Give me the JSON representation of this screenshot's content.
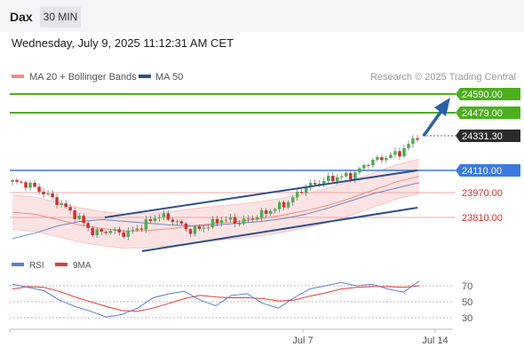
{
  "header": {
    "instrument": "Dax",
    "timeframe": "30 MIN",
    "datetime": "Wednesday, July 9, 2025 11:12:31 AM CET"
  },
  "legend": {
    "items": [
      {
        "label": "MA 20 + Bollinger Bands",
        "color": "#f28b82"
      },
      {
        "label": "MA 50",
        "color": "#2b4f8f"
      }
    ],
    "source": "Research © 2025 Trading Central"
  },
  "colors": {
    "resistance": "#4caf1c",
    "pivot": "#3b7ae0",
    "support": "#f5a3a3",
    "support_text": "#d32f2f",
    "channel": "#2b4f8f",
    "arrow": "#2b5fa8",
    "bull_candle": "#4caf50",
    "bear_candle": "#d32f2f",
    "band_fill": "#fce3e3",
    "rsi_line": "#5b7fd6",
    "rsi_ma_line": "#e53935"
  },
  "chart_data": [
    {
      "type": "candlestick",
      "title": "",
      "x_ticks": [
        "Jul 7",
        "Jul 14"
      ],
      "ylim": [
        23680,
        24640
      ],
      "levels": [
        {
          "label": "24590.00",
          "value": 24590,
          "kind": "resistance"
        },
        {
          "label": "24479.00",
          "value": 24479,
          "kind": "resistance"
        },
        {
          "label": "24331.30",
          "value": 24331.3,
          "kind": "last-price"
        },
        {
          "label": "24110.00",
          "value": 24110,
          "kind": "pivot"
        },
        {
          "label": "23970.00",
          "value": 23970,
          "kind": "support"
        },
        {
          "label": "23810.00",
          "value": 23810,
          "kind": "support"
        }
      ],
      "series": [
        {
          "name": "MA 20 + Bollinger Bands",
          "values": [
            23905,
            23895,
            23865,
            23835,
            23815,
            23800,
            23805,
            23815,
            23830,
            23845,
            23855,
            23870,
            23890,
            23915,
            23945,
            23985,
            24030,
            24075,
            24105
          ]
        },
        {
          "name": "MA 50",
          "values": [
            23760,
            23790,
            23830,
            23855,
            23865,
            23855,
            23845,
            23835,
            23830,
            23835,
            23845,
            23855,
            23870,
            23895,
            23930,
            23970,
            24010,
            24040,
            24070
          ]
        }
      ],
      "close": [
        24075,
        24060,
        24010,
        23950,
        23880,
        23790,
        23805,
        23785,
        23830,
        23890,
        23860,
        23800,
        23830,
        23870,
        23850,
        23880,
        23920,
        23960,
        24040,
        24075,
        24100,
        24110,
        24185,
        24210,
        24240,
        24331
      ]
    },
    {
      "type": "line",
      "title": "",
      "yticks": [
        30,
        50,
        70
      ],
      "ylim": [
        20,
        80
      ],
      "series": [
        {
          "name": "RSI",
          "values": [
            72,
            68,
            64,
            52,
            44,
            38,
            31,
            34,
            42,
            55,
            60,
            63,
            52,
            45,
            58,
            60,
            48,
            42,
            55,
            66,
            70,
            74,
            70,
            72,
            66,
            62,
            76
          ]
        },
        {
          "name": "9MA",
          "values": [
            66,
            69,
            68,
            63,
            56,
            50,
            44,
            39,
            38,
            42,
            48,
            54,
            58,
            56,
            55,
            55,
            54,
            51,
            52,
            57,
            61,
            66,
            68,
            69,
            69,
            68,
            70
          ]
        }
      ]
    }
  ]
}
